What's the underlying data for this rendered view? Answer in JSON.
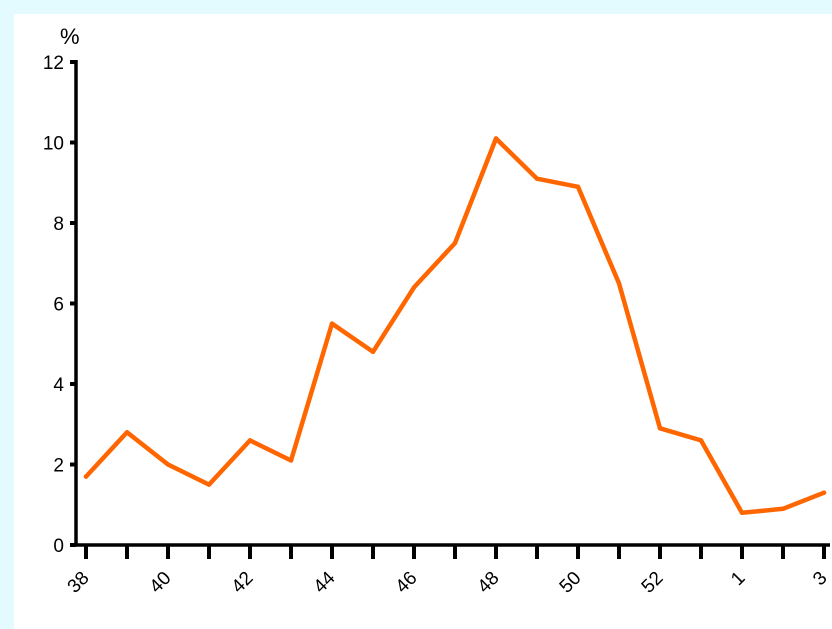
{
  "chart_data": {
    "type": "line",
    "title": "",
    "xlabel": "",
    "ylabel": "%",
    "ylim": [
      0,
      12
    ],
    "yticks": [
      "0",
      "2",
      "4",
      "6",
      "8",
      "10",
      "12"
    ],
    "x": [
      38,
      39,
      40,
      41,
      42,
      43,
      44,
      45,
      46,
      47,
      48,
      49,
      50,
      51,
      52,
      53,
      1,
      2,
      3
    ],
    "xtick_labels": [
      "38",
      "",
      "40",
      "",
      "42",
      "",
      "44",
      "",
      "46",
      "",
      "48",
      "",
      "50",
      "",
      "52",
      "",
      "1",
      "",
      "3"
    ],
    "series": [
      {
        "values": [
          1.7,
          2.8,
          2.0,
          1.5,
          2.6,
          2.1,
          5.5,
          4.8,
          6.4,
          7.5,
          10.1,
          9.1,
          8.9,
          6.5,
          2.9,
          2.6,
          0.8,
          0.9,
          1.3
        ],
        "color": "#ff6600"
      }
    ],
    "grid": false,
    "legend": "none"
  }
}
